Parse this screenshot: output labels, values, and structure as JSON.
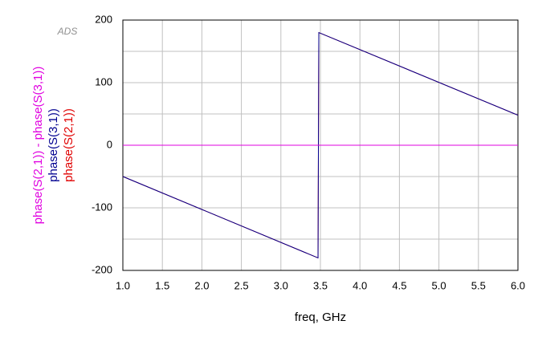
{
  "chart_data": {
    "type": "line",
    "watermark": "ADS",
    "x_label": "freq, GHz",
    "xlim": [
      1.0,
      6.0
    ],
    "xticks": [
      {
        "value": 1.0,
        "label": "1.0"
      },
      {
        "value": 1.5,
        "label": "1.5"
      },
      {
        "value": 2.0,
        "label": "2.0"
      },
      {
        "value": 2.5,
        "label": "2.5"
      },
      {
        "value": 3.0,
        "label": "3.0"
      },
      {
        "value": 3.5,
        "label": "3.5"
      },
      {
        "value": 4.0,
        "label": "4.0"
      },
      {
        "value": 4.5,
        "label": "4.5"
      },
      {
        "value": 5.0,
        "label": "5.0"
      },
      {
        "value": 5.5,
        "label": "5.5"
      },
      {
        "value": 6.0,
        "label": "6.0"
      }
    ],
    "ylim": [
      -200,
      200
    ],
    "yticks": [
      -200,
      -100,
      0,
      100,
      200
    ],
    "y_gridlines": [
      -150,
      -50,
      50,
      150
    ],
    "grid": true,
    "x": [
      1.0,
      3.47,
      3.48,
      6.0
    ],
    "series": [
      {
        "name": "phase(S(2,1))",
        "color": "#e00000",
        "values": [
          -50,
          -180,
          180,
          48
        ]
      },
      {
        "name": "phase(S(3,1))",
        "color": "#000090",
        "values": [
          -50,
          -180,
          180,
          48
        ]
      },
      {
        "name": "phase(S(2,1)) - phase(S(3,1))",
        "color": "#e000e0",
        "values": [
          0,
          0,
          0,
          0
        ]
      }
    ]
  }
}
